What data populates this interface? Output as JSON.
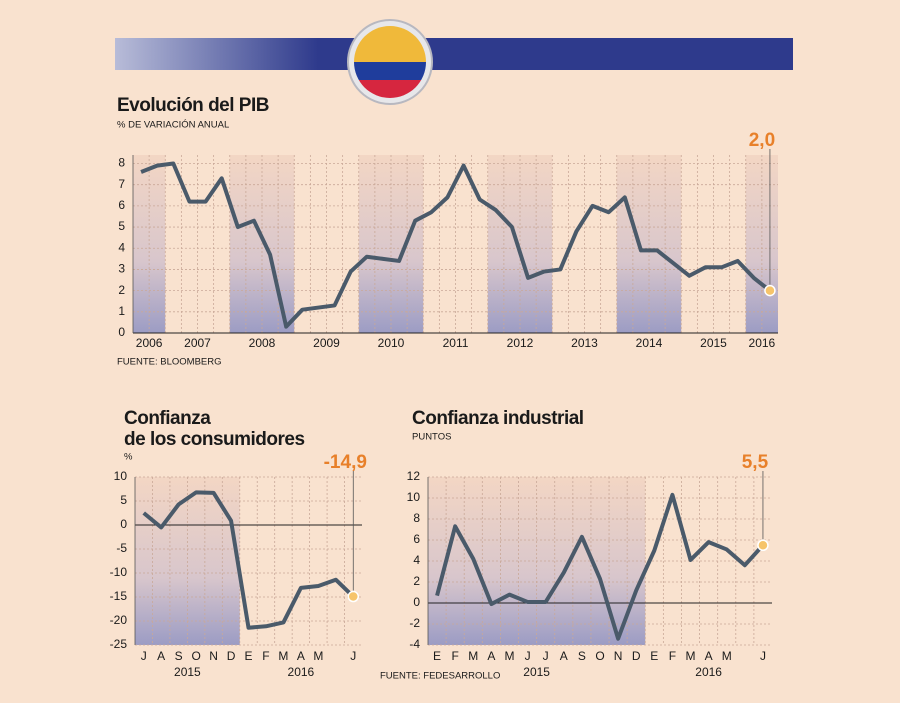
{
  "chart_data": [
    {
      "type": "line",
      "title": "Evolución del PIB",
      "subtitle": "% DE VARIACIÓN ANUAL",
      "source": "FUENTE: BLOOMBERG",
      "annotation": "2,0",
      "color": "#4a5a6a",
      "ylim": [
        0,
        8.4
      ],
      "yticks": [
        0,
        1,
        2,
        3,
        4,
        5,
        6,
        7,
        8
      ],
      "groups": [
        {
          "label": "2006",
          "values": [
            7.6,
            7.9
          ]
        },
        {
          "label": "2007",
          "values": [
            8.0,
            6.2,
            6.2,
            7.3
          ]
        },
        {
          "label": "2008",
          "values": [
            5.0,
            5.3,
            3.7,
            0.3
          ]
        },
        {
          "label": "2009",
          "values": [
            1.1,
            1.2,
            1.3,
            2.9
          ]
        },
        {
          "label": "2010",
          "values": [
            3.6,
            3.5,
            3.4,
            5.3
          ]
        },
        {
          "label": "2011",
          "values": [
            5.7,
            6.4,
            7.9,
            6.3
          ]
        },
        {
          "label": "2012",
          "values": [
            5.8,
            5.0,
            2.6,
            2.9
          ]
        },
        {
          "label": "2013",
          "values": [
            3.0,
            4.8,
            6.0,
            5.7
          ]
        },
        {
          "label": "2014",
          "values": [
            6.4,
            3.9,
            3.9,
            3.3
          ]
        },
        {
          "label": "2015",
          "values": [
            2.7,
            3.1,
            3.1,
            3.4
          ]
        },
        {
          "label": "2016",
          "values": [
            2.6,
            2.0
          ]
        }
      ]
    },
    {
      "type": "line",
      "title_lines": [
        "Confianza",
        "de los consumidores"
      ],
      "ylabel": "%",
      "annotation": "-14,9",
      "color": "#4a5a6a",
      "ylim": [
        -25,
        10
      ],
      "yticks": [
        10,
        5,
        0,
        -5,
        -10,
        -15,
        -20,
        -25
      ],
      "groups": [
        {
          "label": "2015",
          "categories": [
            "J",
            "A",
            "S",
            "O",
            "N",
            "D"
          ],
          "values": [
            2.5,
            -0.5,
            4.3,
            6.8,
            6.7,
            0.9
          ]
        },
        {
          "label": "2016",
          "categories": [
            "E",
            "F",
            "M",
            "A",
            "M",
            null,
            "J"
          ],
          "values": [
            -21.4,
            -21.1,
            -20.3,
            -13.1,
            -12.7,
            -11.4,
            -14.9
          ]
        }
      ]
    },
    {
      "type": "line",
      "title": "Confianza industrial",
      "subtitle": "PUNTOS",
      "source": "FUENTE: FEDESARROLLO",
      "annotation": "5,5",
      "color": "#4a5a6a",
      "ylim": [
        -4,
        12
      ],
      "yticks": [
        12,
        10,
        8,
        6,
        4,
        2,
        0,
        -2,
        -4
      ],
      "groups": [
        {
          "label": "2015",
          "categories": [
            "E",
            "F",
            "M",
            "A",
            "M",
            "J",
            "J",
            "A",
            "S",
            "O",
            "N",
            "D"
          ],
          "values": [
            0.7,
            7.3,
            4.2,
            -0.1,
            0.8,
            0.1,
            0.1,
            2.9,
            6.3,
            2.3,
            -3.4,
            1.2
          ]
        },
        {
          "label": "2016",
          "categories": [
            "E",
            "F",
            "M",
            "A",
            "M",
            null,
            "J"
          ],
          "values": [
            5.0,
            10.3,
            4.1,
            5.8,
            5.1,
            3.6,
            5.5
          ]
        }
      ]
    }
  ]
}
